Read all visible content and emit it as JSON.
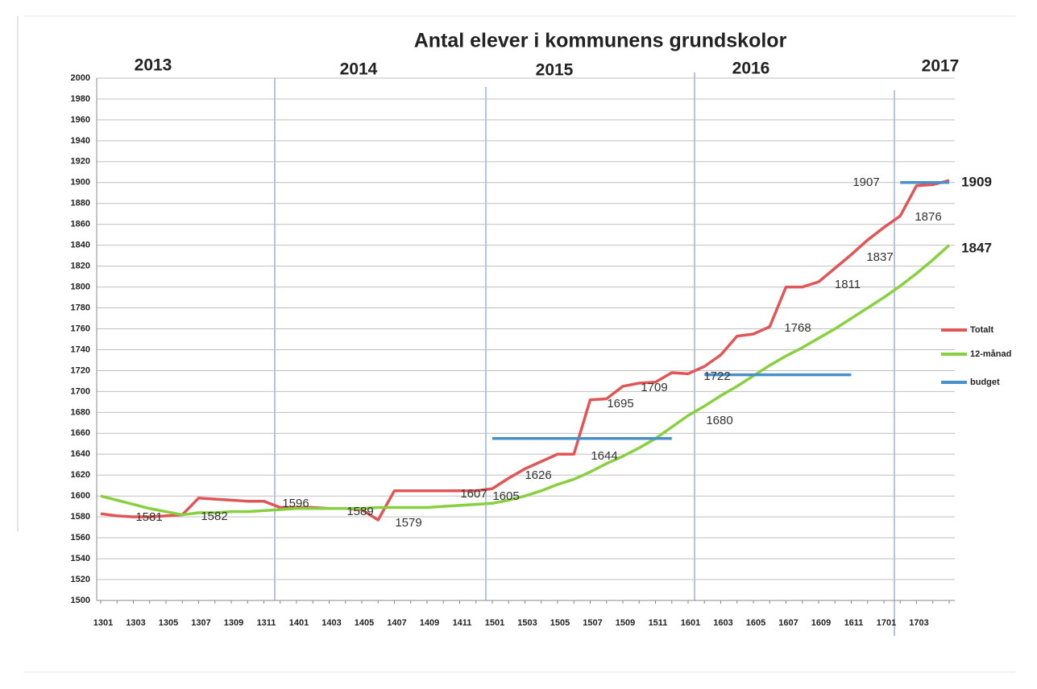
{
  "chart_data": {
    "type": "line",
    "title": "Antal elever i kommunens grundskolor",
    "categories": [
      "1301",
      null,
      "1303",
      null,
      "1305",
      null,
      "1307",
      null,
      "1309",
      null,
      "1311",
      null,
      "1401",
      null,
      "1403",
      null,
      "1405",
      null,
      "1407",
      null,
      "1409",
      null,
      "1411",
      null,
      "1501",
      null,
      "1503",
      null,
      "1505",
      null,
      "1507",
      null,
      "1509",
      null,
      "1511",
      null,
      "1601",
      null,
      "1603",
      null,
      "1605",
      null,
      "1607",
      null,
      "1609",
      null,
      "1611",
      null,
      "1701",
      null,
      "1703",
      null,
      null
    ],
    "series": [
      {
        "name": "Totalt",
        "color": "#e05555",
        "values": [
          1583,
          1581,
          1580,
          1580,
          1581,
          1582,
          1598,
          1597,
          1596,
          1595,
          1595,
          1589,
          1589,
          1589,
          1588,
          1588,
          1587,
          1577,
          1605,
          1605,
          1605,
          1605,
          1605,
          1605,
          1607,
          1617,
          1626,
          1633,
          1640,
          1640,
          1692,
          1693,
          1705,
          1708,
          1709,
          1718,
          1717,
          1724,
          1735,
          1753,
          1755,
          1762,
          1800,
          1800,
          1805,
          1818,
          1831,
          1845,
          1857,
          1868,
          1897,
          1898,
          1902
        ]
      },
      {
        "name": "12-månad",
        "color": "#88d040",
        "values": [
          1600,
          1596,
          1592,
          1588,
          1585,
          1582,
          1584,
          1584,
          1585,
          1585,
          1586,
          1587,
          1588,
          1588,
          1588,
          1588,
          1588,
          1589,
          1589,
          1589,
          1589,
          1590,
          1591,
          1592,
          1593,
          1596,
          1600,
          1605,
          1611,
          1616,
          1623,
          1631,
          1638,
          1646,
          1655,
          1666,
          1677,
          1686,
          1696,
          1705,
          1715,
          1725,
          1734,
          1742,
          1751,
          1760,
          1770,
          1780,
          1790,
          1801,
          1813,
          1826,
          1840
        ]
      },
      {
        "name": "budget",
        "color": "#4a90c8",
        "values": [
          null,
          null,
          null,
          null,
          null,
          null,
          null,
          null,
          null,
          null,
          null,
          null,
          null,
          null,
          null,
          null,
          null,
          null,
          null,
          null,
          null,
          null,
          null,
          null,
          1655,
          1655,
          1655,
          1655,
          1655,
          1655,
          1655,
          1655,
          1655,
          1655,
          1655,
          1655,
          null,
          1716,
          1716,
          1716,
          1716,
          1716,
          1716,
          1716,
          1716,
          1716,
          1716,
          null,
          null,
          1900,
          1900,
          1900,
          1900
        ]
      }
    ],
    "ylim": [
      1500,
      2000
    ],
    "yticks": [
      1500,
      1520,
      1540,
      1560,
      1580,
      1600,
      1620,
      1640,
      1660,
      1680,
      1700,
      1720,
      1740,
      1760,
      1780,
      1800,
      1820,
      1840,
      1860,
      1880,
      1900,
      1920,
      1940,
      1960,
      1980,
      2000
    ],
    "grid": true,
    "legend": "right",
    "year_labels": [
      "2013",
      "2014",
      "2015",
      "2016",
      "2017"
    ],
    "annotations": [
      "1581",
      "1582",
      "1596",
      "1589",
      "1579",
      "1607",
      "1605",
      "1626",
      "1644",
      "1695",
      "1709",
      "1722",
      "1680",
      "1768",
      "1811",
      "1837",
      "1876",
      "1907",
      "1909",
      "1847"
    ]
  }
}
